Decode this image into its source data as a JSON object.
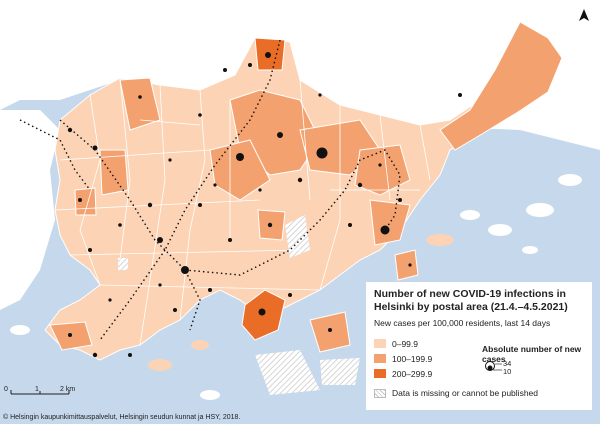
{
  "legend": {
    "title": "Number of new COVID-19 infections in Helsinki by postal area (21.4.–4.5.2021)",
    "subtitle": "New cases per 100,000 residents, last 14 days",
    "classes": [
      {
        "label": "0–99.9",
        "color": "#fcd3b4"
      },
      {
        "label": "100–199.9",
        "color": "#f4a170"
      },
      {
        "label": "200–299.9",
        "color": "#ea6d27"
      }
    ],
    "sizes_title": "Absolute number of new cases",
    "size_max": "34",
    "size_min": "10",
    "missing_label": "Data is missing or cannot be published"
  },
  "scale": {
    "zero": "0",
    "one": "1",
    "two": "2 km"
  },
  "credits": "© Helsingin kaupunkimittauspalvelut, Helsingin seudun kunnat ja HSY, 2018.",
  "colors": {
    "water": "#c5d8ec",
    "land_out": "#ffffff",
    "border": "#ffffff",
    "dots": "#111111"
  },
  "north_icon": "north-arrow-icon"
}
